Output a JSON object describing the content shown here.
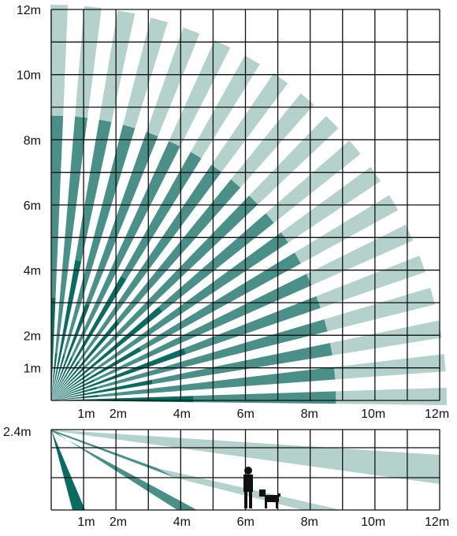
{
  "top_view": {
    "y_labels": [
      {
        "text": "12m",
        "value": 12
      },
      {
        "text": "10m",
        "value": 10
      },
      {
        "text": "8m",
        "value": 8
      },
      {
        "text": "6m",
        "value": 6
      },
      {
        "text": "4m",
        "value": 4
      },
      {
        "text": "2m",
        "value": 2
      },
      {
        "text": "1m",
        "value": 1
      }
    ],
    "x_labels": [
      {
        "text": "1m",
        "value": 1
      },
      {
        "text": "2m",
        "value": 2
      },
      {
        "text": "4m",
        "value": 4
      },
      {
        "text": "6m",
        "value": 6
      },
      {
        "text": "8m",
        "value": 8
      },
      {
        "text": "10m",
        "value": 10
      },
      {
        "text": "12m",
        "value": 12
      }
    ],
    "beam_count": 19,
    "range_m": 12
  },
  "side_view": {
    "y_label": "2.4m",
    "x_labels": [
      {
        "text": "1m",
        "value": 1
      },
      {
        "text": "2m",
        "value": 2
      },
      {
        "text": "4m",
        "value": 4
      },
      {
        "text": "6m",
        "value": 6
      },
      {
        "text": "8m",
        "value": 8
      },
      {
        "text": "10m",
        "value": 10
      },
      {
        "text": "12m",
        "value": 12
      }
    ]
  },
  "colors": {
    "zone_near": "#0b6a62",
    "zone_mid": "#4a8f88",
    "zone_far": "#b5d1cc",
    "grid": "#111111"
  }
}
